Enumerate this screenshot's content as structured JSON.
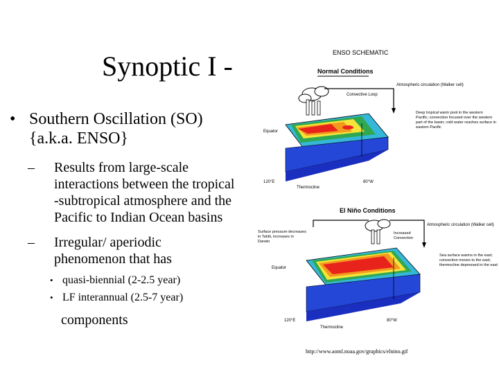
{
  "slide": {
    "title": "Synoptic I -",
    "bullet": {
      "marker": "•",
      "lines": [
        "Southern Oscillation (SO)",
        "{a.k.a. ENSO}"
      ]
    },
    "subbullets": [
      {
        "marker": "–",
        "lines": [
          "Results from large-scale",
          "interactions between the tropical",
          "-subtropical atmosphere and the",
          "Pacific to Indian Ocean basins"
        ]
      },
      {
        "marker": "–",
        "lines": [
          "Irregular/ aperiodic",
          "phenomenon that has"
        ]
      }
    ],
    "subsubbullets": [
      {
        "marker": "•",
        "text": "quasi-biennial (2-2.5 year)"
      },
      {
        "marker": "•",
        "text": "LF interannual (2.5-7 year)"
      }
    ],
    "components": "components"
  },
  "figure": {
    "heading": "ENSO SCHEMATIC",
    "panels": [
      {
        "title": "Normal Conditions",
        "labels": {
          "convective": "Convective Loop",
          "circulation": "Atmospheric circulation (Walker cell)",
          "equator": "Equator",
          "lon_west": "120°E",
          "lon_east": "80°W",
          "thermocline": "Thermocline",
          "note": "Deep tropical warm pool in the western Pacific; convection focused over the western part of the basin; cold water reaches surface in eastern Pacific"
        }
      },
      {
        "title": "El Niño Conditions",
        "labels": {
          "circulation": "Atmospheric circulation (Walker cell)",
          "surface": "Surface pressure decreases in Tahiti, increases in Darwin",
          "convection": "Increased Convection",
          "equator": "Equator",
          "lon_west": "120°E",
          "lon_east": "80°W",
          "thermocline": "Thermocline",
          "note": "Sea surface warms in the east; convection moves to the east; thermocline depressed in the east"
        }
      }
    ],
    "colors": {
      "ocean_blue": "#1f3fd6",
      "warm_red": "#e8231c",
      "orange": "#f39a1e",
      "yellow": "#f6e43a",
      "green": "#2fa84f",
      "cyan": "#35b7d9"
    },
    "credit": "http://www.aoml.noaa.gov/graphics/elnino.gif"
  }
}
